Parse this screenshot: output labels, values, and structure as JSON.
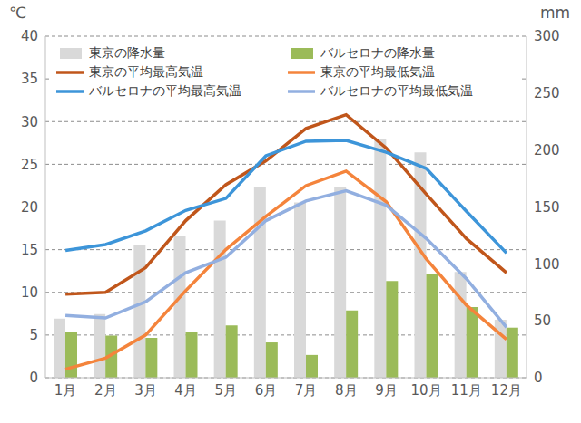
{
  "chart_data": {
    "type": "combo",
    "y_label": "℃",
    "y2_label": "mm",
    "categories": [
      "1月",
      "2月",
      "3月",
      "4月",
      "5月",
      "6月",
      "7月",
      "8月",
      "9月",
      "10月",
      "11月",
      "12月"
    ],
    "ylim": [
      0,
      40
    ],
    "yticks": [
      0,
      5,
      10,
      15,
      20,
      25,
      30,
      35,
      40
    ],
    "y2lim": [
      0,
      300
    ],
    "y2ticks": [
      0,
      50,
      100,
      150,
      200,
      250,
      300
    ],
    "grid": true,
    "legend": "top",
    "series": [
      {
        "name": "東京の降水量",
        "type": "bar",
        "axis": "y2",
        "color": "#d9d9d9",
        "values": [
          52,
          56,
          117,
          125,
          138,
          168,
          154,
          168,
          210,
          198,
          93,
          51
        ]
      },
      {
        "name": "バルセロナの降水量",
        "type": "bar",
        "axis": "y2",
        "color": "#9bbb59",
        "values": [
          40,
          37,
          35,
          40,
          46,
          31,
          20,
          59,
          85,
          91,
          62,
          44
        ]
      },
      {
        "name": "東京の平均最高気温",
        "type": "line",
        "color": "#c0561b",
        "values": [
          9.8,
          10.0,
          12.9,
          18.4,
          22.6,
          25.4,
          29.2,
          30.8,
          26.9,
          21.5,
          16.3,
          12.3
        ]
      },
      {
        "name": "東京の平均最低気温",
        "type": "line",
        "color": "#f4843c",
        "values": [
          1.0,
          2.3,
          5.0,
          10.2,
          15.0,
          18.9,
          22.5,
          24.2,
          20.6,
          13.9,
          8.5,
          4.5
        ]
      },
      {
        "name": "バルセロナの平均最高気温",
        "type": "line",
        "color": "#3d95d9",
        "values": [
          14.9,
          15.6,
          17.2,
          19.6,
          21.0,
          26.0,
          27.7,
          27.8,
          26.4,
          24.5,
          19.5,
          14.6
        ]
      },
      {
        "name": "バルセロナの平均最低気温",
        "type": "line",
        "color": "#92afe0",
        "values": [
          7.3,
          7.0,
          8.9,
          12.3,
          14.1,
          18.4,
          20.7,
          21.9,
          20.2,
          16.3,
          11.6,
          5.9
        ]
      }
    ]
  }
}
